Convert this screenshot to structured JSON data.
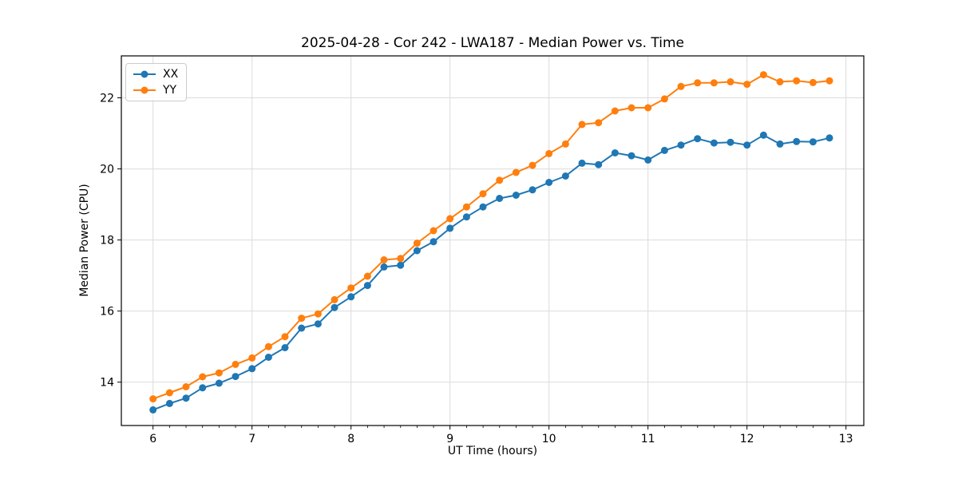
{
  "chart_data": {
    "type": "line",
    "title": "2025-04-28 - Cor 242 - LWA187 - Median Power vs. Time",
    "xlabel": "UT Time (hours)",
    "ylabel": "Median Power (CPU)",
    "xlim": [
      5.68,
      13.18
    ],
    "ylim": [
      12.78,
      23.18
    ],
    "xticks": [
      6,
      7,
      8,
      9,
      10,
      11,
      12,
      13
    ],
    "yticks": [
      14,
      16,
      18,
      20,
      22
    ],
    "x_minor_step": 0.1667,
    "grid": true,
    "grid_color": "#dcdcdc",
    "legend_position": "upper-left",
    "marker": "o",
    "line_width": 2,
    "x": [
      6.0,
      6.167,
      6.333,
      6.5,
      6.667,
      6.833,
      7.0,
      7.167,
      7.333,
      7.5,
      7.667,
      7.833,
      8.0,
      8.167,
      8.333,
      8.5,
      8.667,
      8.833,
      9.0,
      9.167,
      9.333,
      9.5,
      9.667,
      9.833,
      10.0,
      10.167,
      10.333,
      10.5,
      10.667,
      10.833,
      11.0,
      11.167,
      11.333,
      11.5,
      11.667,
      11.833,
      12.0,
      12.167,
      12.333,
      12.5,
      12.667,
      12.833
    ],
    "series": [
      {
        "name": "XX",
        "color": "#1f77b4",
        "values": [
          13.22,
          13.4,
          13.55,
          13.84,
          13.97,
          14.16,
          14.38,
          14.7,
          14.97,
          15.52,
          15.64,
          16.1,
          16.4,
          16.72,
          17.24,
          17.29,
          17.7,
          17.95,
          18.33,
          18.65,
          18.93,
          19.17,
          19.26,
          19.41,
          19.62,
          19.8,
          20.16,
          20.12,
          20.45,
          20.37,
          20.25,
          20.52,
          20.67,
          20.85,
          20.73,
          20.75,
          20.67,
          20.95,
          20.7,
          20.77,
          20.76,
          20.87
        ]
      },
      {
        "name": "YY",
        "color": "#ff7f0e",
        "values": [
          13.53,
          13.7,
          13.87,
          14.15,
          14.26,
          14.5,
          14.68,
          15.0,
          15.28,
          15.8,
          15.92,
          16.32,
          16.65,
          16.98,
          17.44,
          17.48,
          17.91,
          18.26,
          18.6,
          18.93,
          19.3,
          19.68,
          19.9,
          20.1,
          20.43,
          20.7,
          21.25,
          21.3,
          21.63,
          21.72,
          21.72,
          21.97,
          22.32,
          22.42,
          22.42,
          22.45,
          22.38,
          22.65,
          22.45,
          22.48,
          22.43,
          22.48
        ]
      }
    ]
  }
}
